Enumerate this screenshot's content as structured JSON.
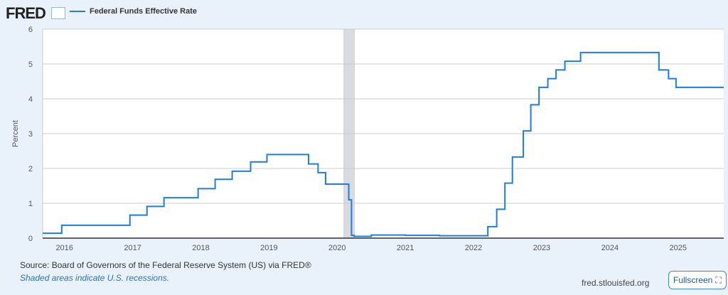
{
  "header": {
    "logo": "FRED",
    "legend_label": "Federal Funds Effective Rate"
  },
  "footer": {
    "source": "Source: Board of Governors of the Federal Reserve System (US) via FRED®",
    "note": "Shaded areas indicate U.S. recessions.",
    "site": "fred.stlouisfed.org",
    "fullscreen": "Fullscreen"
  },
  "colors": {
    "line": "#1e7de0",
    "recession": "#d9dcdf"
  },
  "chart_data": {
    "type": "line",
    "title": "Federal Funds Effective Rate",
    "ylabel": "Percent",
    "xlabel": "",
    "ylim": [
      0,
      6
    ],
    "xlim": [
      2015.68,
      2025.67
    ],
    "yticks": [
      "0",
      "1",
      "2",
      "3",
      "4",
      "5",
      "6"
    ],
    "xticks": [
      "2016",
      "2017",
      "2018",
      "2019",
      "2020",
      "2021",
      "2022",
      "2023",
      "2024",
      "2025"
    ],
    "recessions": [
      [
        2020.1,
        2020.25
      ]
    ],
    "series": [
      {
        "name": "Federal Funds Effective Rate",
        "x": [
          2015.68,
          2015.96,
          2016.96,
          2017.21,
          2017.46,
          2017.96,
          2018.21,
          2018.46,
          2018.73,
          2018.97,
          2019.58,
          2019.72,
          2019.83,
          2020.17,
          2020.21,
          2020.25,
          2020.5,
          2021.0,
          2021.5,
          2022.21,
          2022.34,
          2022.46,
          2022.57,
          2022.73,
          2022.84,
          2022.96,
          2023.09,
          2023.21,
          2023.34,
          2023.57,
          2024.72,
          2024.86,
          2024.97,
          2025.67
        ],
        "values": [
          0.14,
          0.37,
          0.66,
          0.91,
          1.16,
          1.42,
          1.69,
          1.92,
          2.19,
          2.4,
          2.13,
          1.88,
          1.55,
          1.1,
          0.08,
          0.05,
          0.09,
          0.08,
          0.07,
          0.33,
          0.83,
          1.58,
          2.33,
          3.08,
          3.83,
          4.33,
          4.58,
          4.83,
          5.08,
          5.33,
          4.83,
          4.58,
          4.33,
          4.33
        ]
      }
    ]
  }
}
